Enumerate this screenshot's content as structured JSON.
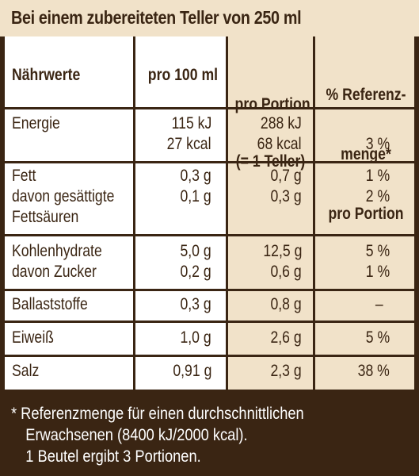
{
  "header": {
    "title": "Bei einem zubereiteten Teller von 250 ml"
  },
  "columns": {
    "nutrients": "Nährwerte",
    "per100": "pro 100 ml",
    "portion_line1": "pro Portion",
    "portion_line2": "(= 1 Teller)",
    "ref_line1": "% Referenz-",
    "ref_line2": "menge*",
    "ref_line3": "pro Portion"
  },
  "rows": [
    {
      "name_lines": [
        "Energie"
      ],
      "per100": [
        "115 kJ",
        "27 kcal"
      ],
      "portion": [
        "288 kJ",
        "68 kcal"
      ],
      "ref": [
        "",
        "3 %"
      ]
    },
    {
      "name_lines": [
        "Fett",
        "davon gesättigte",
        "Fettsäuren"
      ],
      "per100": [
        "0,3 g",
        "0,1 g"
      ],
      "portion": [
        "0,7 g",
        "0,3 g"
      ],
      "ref": [
        "1 %",
        "2 %"
      ]
    },
    {
      "name_lines": [
        "Kohlenhydrate",
        "davon Zucker"
      ],
      "per100": [
        "5,0 g",
        "0,2 g"
      ],
      "portion": [
        "12,5 g",
        "0,6 g"
      ],
      "ref": [
        "5 %",
        "1 %"
      ]
    },
    {
      "name_lines": [
        "Ballaststoffe"
      ],
      "per100": [
        "0,3 g"
      ],
      "portion": [
        "0,8 g"
      ],
      "ref": [
        "–"
      ]
    },
    {
      "name_lines": [
        "Eiweiß"
      ],
      "per100": [
        "1,0 g"
      ],
      "portion": [
        "2,6 g"
      ],
      "ref": [
        "5 %"
      ]
    },
    {
      "name_lines": [
        "Salz"
      ],
      "per100": [
        "0,91 g"
      ],
      "portion": [
        "2,3 g"
      ],
      "ref": [
        "38 %"
      ]
    }
  ],
  "footnote": {
    "line1": "* Referenzmenge für einen durchschnittlichen",
    "line2": "Erwachsenen (8400 kJ/2000 kcal).",
    "line3": "1 Beutel ergibt 3 Portionen."
  },
  "colors": {
    "dark_brown": "#3a2513",
    "cream": "#f1e2c9",
    "white": "#ffffff"
  }
}
